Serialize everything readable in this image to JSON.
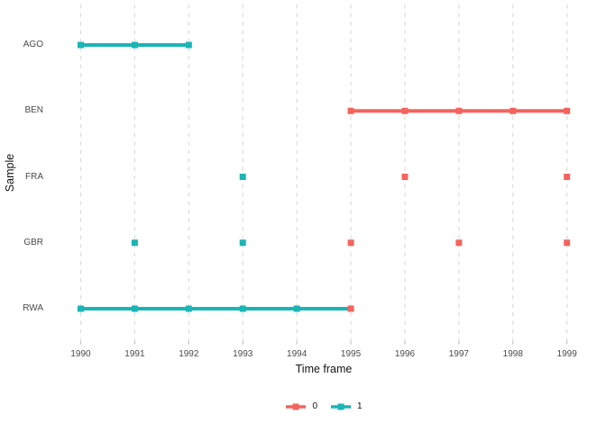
{
  "chart_data": {
    "type": "scatter",
    "title": "",
    "xlabel": "Time frame",
    "ylabel": "Sample",
    "x_ticks": [
      1990,
      1991,
      1992,
      1993,
      1994,
      1995,
      1996,
      1997,
      1998,
      1999
    ],
    "xlim": [
      1989.55,
      1999.45
    ],
    "samples": [
      "AGO",
      "BEN",
      "FRA",
      "GBR",
      "RWA"
    ],
    "grid": "vertical-dashed-only",
    "legend_position": "bottom-center",
    "groups": {
      "0": "#F4645D",
      "1": "#1AB5B6"
    },
    "legend": [
      {
        "label": "0",
        "group": "0"
      },
      {
        "label": "1",
        "group": "1"
      }
    ],
    "points": [
      {
        "sample": "AGO",
        "year": 1990,
        "group": "1"
      },
      {
        "sample": "AGO",
        "year": 1991,
        "group": "1"
      },
      {
        "sample": "AGO",
        "year": 1992,
        "group": "1"
      },
      {
        "sample": "BEN",
        "year": 1995,
        "group": "0"
      },
      {
        "sample": "BEN",
        "year": 1996,
        "group": "0"
      },
      {
        "sample": "BEN",
        "year": 1997,
        "group": "0"
      },
      {
        "sample": "BEN",
        "year": 1998,
        "group": "0"
      },
      {
        "sample": "BEN",
        "year": 1999,
        "group": "0"
      },
      {
        "sample": "FRA",
        "year": 1993,
        "group": "1"
      },
      {
        "sample": "FRA",
        "year": 1996,
        "group": "0"
      },
      {
        "sample": "FRA",
        "year": 1999,
        "group": "0"
      },
      {
        "sample": "GBR",
        "year": 1991,
        "group": "1"
      },
      {
        "sample": "GBR",
        "year": 1993,
        "group": "1"
      },
      {
        "sample": "GBR",
        "year": 1995,
        "group": "0"
      },
      {
        "sample": "GBR",
        "year": 1997,
        "group": "0"
      },
      {
        "sample": "GBR",
        "year": 1999,
        "group": "0"
      },
      {
        "sample": "RWA",
        "year": 1990,
        "group": "1"
      },
      {
        "sample": "RWA",
        "year": 1991,
        "group": "1"
      },
      {
        "sample": "RWA",
        "year": 1992,
        "group": "1"
      },
      {
        "sample": "RWA",
        "year": 1993,
        "group": "1"
      },
      {
        "sample": "RWA",
        "year": 1994,
        "group": "1"
      },
      {
        "sample": "RWA",
        "year": 1995,
        "group": "0"
      }
    ],
    "lines": [
      {
        "sample": "AGO",
        "from": 1990,
        "to": 1992,
        "group": "1"
      },
      {
        "sample": "BEN",
        "from": 1995,
        "to": 1999,
        "group": "0"
      },
      {
        "sample": "RWA",
        "from": 1990,
        "to": 1995,
        "group": "1"
      }
    ]
  },
  "style_colors": {
    "gridline": "#DCDCDC",
    "tick_mark": "#C4C4C4",
    "axis_text": "#4a4a4a",
    "title_text": "#141414",
    "background": "#ffffff"
  }
}
